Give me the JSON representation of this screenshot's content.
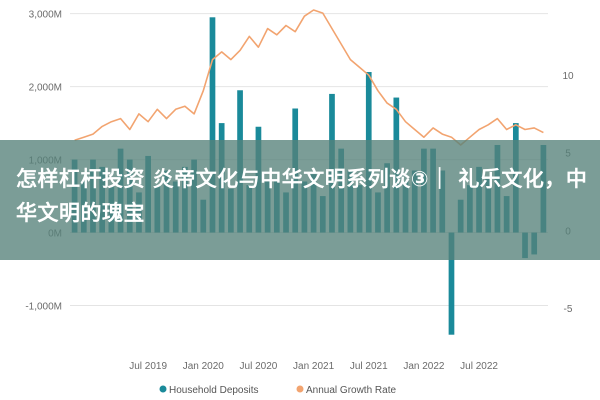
{
  "colors": {
    "bar": "#1a8a9a",
    "line": "#f2a470",
    "grid": "#e4e4e4",
    "overlay": "#56827a",
    "headline_text": "#ffffff"
  },
  "headline": "怎样杠杆投资 炎帝文化与中华文明系列谈③｜ 礼乐文化，中华文明的瑰宝",
  "chart_data": {
    "type": "bar",
    "combo": "bar+line (dual axis)",
    "grid": true,
    "legend_position": "bottom-center",
    "y_left": {
      "ticks": [
        3000,
        2000,
        1000,
        0,
        -1000
      ],
      "tick_labels": [
        "3,000M",
        "2,000M",
        "1,000M",
        "0M",
        "-1,000M"
      ],
      "range": [
        -1500,
        3050
      ]
    },
    "y_right": {
      "ticks": [
        10,
        5,
        0,
        -5
      ],
      "tick_labels": [
        "10",
        "5",
        "0",
        "-5"
      ],
      "range": [
        -7.2,
        14.2
      ]
    },
    "x_tick_labels": [
      "Jul 2019",
      "Jan 2020",
      "Jul 2020",
      "Jan 2021",
      "Jul 2021",
      "Jan 2022",
      "Jul 2022"
    ],
    "x_tick_positions": [
      8,
      14,
      20,
      26,
      32,
      38,
      44
    ],
    "months": 50,
    "series": [
      {
        "name": "Household Deposits",
        "type": "bar",
        "axis": "left",
        "values": [
          1000,
          700,
          1000,
          900,
          650,
          1150,
          1000,
          550,
          1050,
          650,
          850,
          700,
          900,
          1000,
          450,
          2950,
          1500,
          600,
          1950,
          650,
          1450,
          700,
          700,
          550,
          1700,
          700,
          800,
          500,
          1900,
          1150,
          850,
          650,
          2200,
          550,
          950,
          1850,
          700,
          850,
          1150,
          1150,
          850,
          -1400,
          450,
          650,
          900,
          750,
          1200,
          500,
          1500,
          -350,
          -300,
          1200
        ]
      },
      {
        "name": "Annual Growth Rate",
        "type": "line",
        "axis": "right",
        "values": [
          5.8,
          6.0,
          6.2,
          6.7,
          7.0,
          7.2,
          6.5,
          7.5,
          7.0,
          7.8,
          7.2,
          7.8,
          8.0,
          7.5,
          9.0,
          11.0,
          11.5,
          11.0,
          11.6,
          12.5,
          11.8,
          13.0,
          12.6,
          13.2,
          12.8,
          13.8,
          14.2,
          14.0,
          13.0,
          12.0,
          11.0,
          10.5,
          10.0,
          9.0,
          8.2,
          7.8,
          7.0,
          6.5,
          6.0,
          6.6,
          6.2,
          6.0,
          5.5,
          6.0,
          6.5,
          6.8,
          7.2,
          6.5,
          6.8,
          6.5,
          6.6,
          6.3
        ]
      }
    ]
  }
}
